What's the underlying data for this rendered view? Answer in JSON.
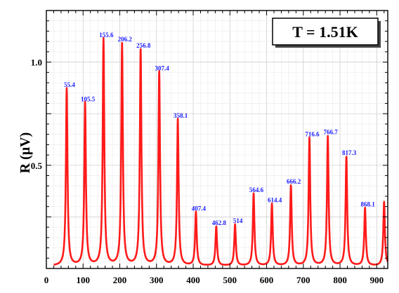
{
  "chart_data": {
    "type": "line",
    "title": "",
    "xlabel": "",
    "ylabel": "R (μV)",
    "annotation": "T = 1.51K",
    "xlim": [
      0,
      930
    ],
    "ylim": [
      0,
      1.25
    ],
    "x_ticks": [
      "0",
      "100",
      "200",
      "300",
      "400",
      "500",
      "600",
      "700",
      "800",
      "900"
    ],
    "y_ticks": [
      "0.5",
      "1.0"
    ],
    "grid": true,
    "series_color": "#ff1a1a",
    "label_color": "#1a1aff",
    "peaks": [
      {
        "x": 55.4,
        "y": 0.86,
        "label": "55.4"
      },
      {
        "x": 105.5,
        "y": 0.79,
        "label": "105.5"
      },
      {
        "x": 155.6,
        "y": 1.1,
        "label": "155.6"
      },
      {
        "x": 206.2,
        "y": 1.08,
        "label": "206.2"
      },
      {
        "x": 256.8,
        "y": 1.05,
        "label": "256.8"
      },
      {
        "x": 307.4,
        "y": 0.94,
        "label": "307.4"
      },
      {
        "x": 358.1,
        "y": 0.71,
        "label": "358.1"
      },
      {
        "x": 407.4,
        "y": 0.26,
        "label": "407.4"
      },
      {
        "x": 462.8,
        "y": 0.19,
        "label": "462.8"
      },
      {
        "x": 514,
        "y": 0.2,
        "label": "514"
      },
      {
        "x": 564.6,
        "y": 0.35,
        "label": "564.6"
      },
      {
        "x": 614.4,
        "y": 0.3,
        "label": "614.4"
      },
      {
        "x": 666.2,
        "y": 0.39,
        "label": "666.2"
      },
      {
        "x": 716.6,
        "y": 0.62,
        "label": "716.6"
      },
      {
        "x": 766.7,
        "y": 0.63,
        "label": "766.7"
      },
      {
        "x": 817.3,
        "y": 0.53,
        "label": "817.3"
      },
      {
        "x": 868.1,
        "y": 0.28,
        "label": "868.1"
      },
      {
        "x": 920,
        "y": 0.31,
        "label": ""
      }
    ]
  }
}
